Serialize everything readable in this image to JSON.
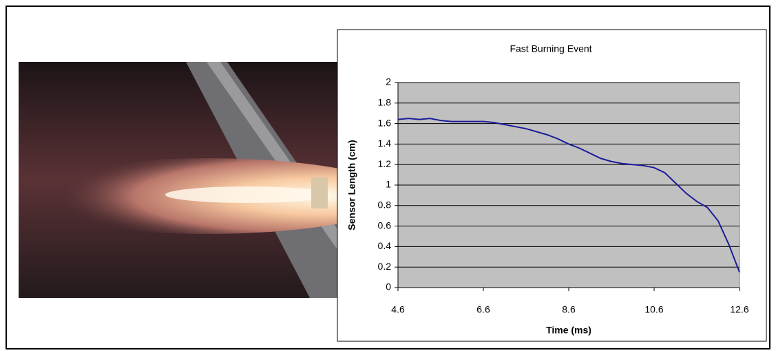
{
  "chart_data": {
    "type": "line",
    "title": "Fast Burning Event",
    "x_label": "Time (ms)",
    "y_label": "Sensor Length (cm)",
    "x": [
      4.6,
      4.85,
      5.1,
      5.35,
      5.6,
      5.85,
      6.1,
      6.35,
      6.6,
      6.85,
      7.1,
      7.35,
      7.6,
      7.85,
      8.1,
      8.35,
      8.6,
      8.85,
      9.1,
      9.35,
      9.6,
      9.85,
      10.1,
      10.35,
      10.6,
      10.85,
      11.1,
      11.35,
      11.6,
      11.85,
      12.1,
      12.35,
      12.6
    ],
    "series": [
      {
        "color": "#1c1c9a",
        "values": [
          1.64,
          1.65,
          1.64,
          1.65,
          1.63,
          1.62,
          1.62,
          1.62,
          1.62,
          1.61,
          1.59,
          1.57,
          1.55,
          1.52,
          1.49,
          1.45,
          1.4,
          1.36,
          1.31,
          1.26,
          1.23,
          1.21,
          1.2,
          1.19,
          1.17,
          1.12,
          1.02,
          0.92,
          0.84,
          0.78,
          0.65,
          0.42,
          0.15
        ]
      }
    ],
    "xlim": [
      4.6,
      12.6
    ],
    "xticks": [
      4.6,
      6.6,
      8.6,
      10.6,
      12.6
    ],
    "ylim": [
      0,
      2
    ],
    "yticks": [
      0,
      0.2,
      0.4,
      0.6,
      0.8,
      1,
      1.2,
      1.4,
      1.6,
      1.8,
      2
    ],
    "grid": true
  }
}
